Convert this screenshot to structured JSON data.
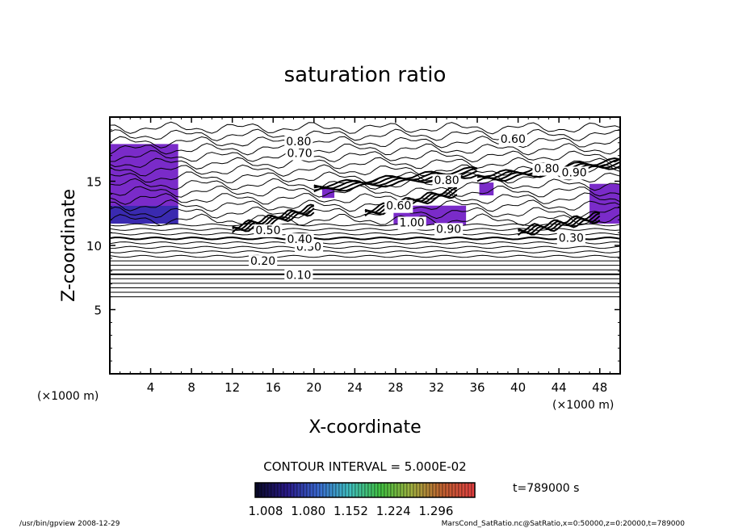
{
  "chart_data": {
    "type": "contour",
    "title": "saturation ratio",
    "xlabel": "X-coordinate",
    "ylabel": "Z-coordinate",
    "x_unit_left": "(×1000 m)",
    "x_unit_right": "(×1000 m)",
    "xlim": [
      0,
      50
    ],
    "ylim": [
      0,
      20
    ],
    "x_ticks": [
      "4",
      "8",
      "12",
      "16",
      "20",
      "24",
      "28",
      "32",
      "36",
      "40",
      "44",
      "48"
    ],
    "x_tick_values": [
      4,
      8,
      12,
      16,
      20,
      24,
      28,
      32,
      36,
      40,
      44,
      48
    ],
    "y_ticks": [
      "5",
      "10",
      "15"
    ],
    "y_tick_values": [
      5,
      10,
      15
    ],
    "contour_interval_label": "CONTOUR INTERVAL = 5.000E-02",
    "time_label": "t=789000 s",
    "colorbar": {
      "colors": [
        "#0a0a2a",
        "#2a1a8a",
        "#3a6ad0",
        "#40c0c0",
        "#40c040",
        "#a0b040",
        "#c06030",
        "#e04040"
      ],
      "labels": [
        "1.008",
        "1.080",
        "1.152",
        "1.224",
        "1.296"
      ],
      "values": [
        1.008,
        1.08,
        1.152,
        1.224,
        1.296
      ]
    },
    "contour_labels": [
      {
        "text": "0.10",
        "x": 18.5,
        "z": 7.7
      },
      {
        "text": "0.20",
        "x": 15.0,
        "z": 8.8
      },
      {
        "text": "0.30",
        "x": 19.5,
        "z": 9.9
      },
      {
        "text": "0.40",
        "x": 18.6,
        "z": 10.5
      },
      {
        "text": "0.50",
        "x": 15.5,
        "z": 11.2
      },
      {
        "text": "0.60",
        "x": 39.5,
        "z": 18.3
      },
      {
        "text": "0.70",
        "x": 18.6,
        "z": 17.2
      },
      {
        "text": "0.80",
        "x": 18.5,
        "z": 18.1
      },
      {
        "text": "0.90",
        "x": 33.2,
        "z": 11.3
      },
      {
        "text": "1.00",
        "x": 29.6,
        "z": 11.8
      },
      {
        "text": "0.60",
        "x": 28.3,
        "z": 13.1
      },
      {
        "text": "0.80",
        "x": 33.0,
        "z": 15.1
      },
      {
        "text": "0.30",
        "x": 45.2,
        "z": 10.6
      },
      {
        "text": "0.90",
        "x": 45.5,
        "z": 15.7
      },
      {
        "text": "0.80",
        "x": 42.8,
        "z": 16.0
      }
    ],
    "supersaturated_regions": [
      {
        "x": [
          0,
          6.7
        ],
        "z": [
          11.7,
          17.9
        ]
      },
      {
        "x": [
          27.8,
          34.9
        ],
        "z": [
          11.6,
          13.1
        ]
      },
      {
        "x": [
          47.0,
          50
        ],
        "z": [
          11.7,
          14.8
        ]
      },
      {
        "x": [
          20.8,
          22.0
        ],
        "z": [
          13.7,
          14.5
        ]
      },
      {
        "x": [
          36.2,
          37.6
        ],
        "z": [
          13.9,
          14.9
        ]
      }
    ]
  },
  "footer": {
    "left": "/usr/bin/gpview   2008-12-29",
    "right": "MarsCond_SatRatio.nc@SatRatio,x=0:50000,z=0:20000,t=789000"
  }
}
